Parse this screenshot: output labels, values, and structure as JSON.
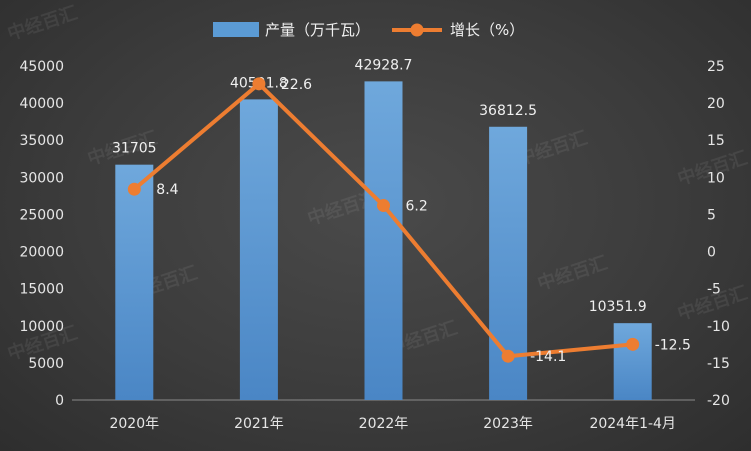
{
  "chart_data": {
    "type": "bar",
    "categories": [
      "2020年",
      "2021年",
      "2022年",
      "2023年",
      "2024年1-4月"
    ],
    "series": [
      {
        "name": "产量（万千瓦）",
        "type": "bar",
        "axis": "left",
        "values": [
          31705,
          40501.8,
          42928.7,
          36812.5,
          10351.9
        ],
        "labels": [
          "31705",
          "40501.8",
          "42928.7",
          "36812.5",
          "10351.9"
        ],
        "color": "#5b9bd5"
      },
      {
        "name": "增长（%）",
        "type": "line",
        "axis": "right",
        "values": [
          8.4,
          22.6,
          6.2,
          -14.1,
          -12.5
        ],
        "labels": [
          "8.4",
          "22.6",
          "6.2",
          "-14.1",
          "-12.5"
        ],
        "color": "#ed7d31"
      }
    ],
    "y_left": {
      "min": 0,
      "max": 45000,
      "step": 5000,
      "ticks": [
        "0",
        "5000",
        "10000",
        "15000",
        "20000",
        "25000",
        "30000",
        "35000",
        "40000",
        "45000"
      ]
    },
    "y_right": {
      "min": -20,
      "max": 25,
      "step": 5,
      "ticks": [
        "-20",
        "-15",
        "-10",
        "-5",
        "0",
        "5",
        "10",
        "15",
        "20",
        "25"
      ]
    },
    "legend_position": "top-center",
    "grid": false
  },
  "watermark": "中经百汇"
}
